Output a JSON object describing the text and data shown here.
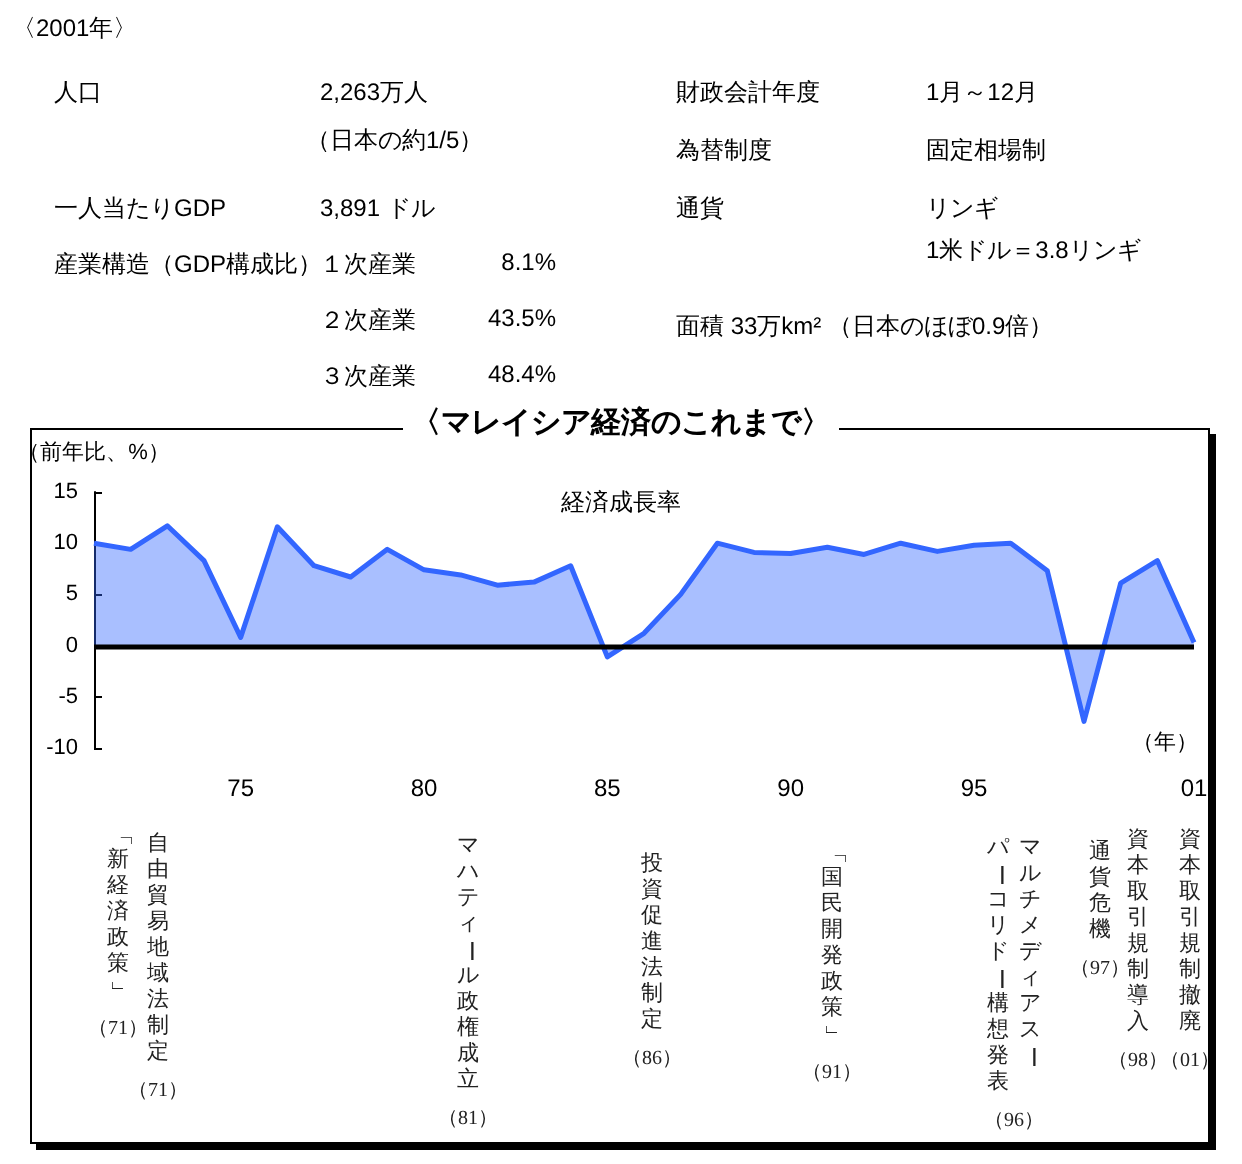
{
  "chart_data": [
    {
      "type": "other",
      "title": "〈2001年〉",
      "annotations": [
        "人口",
        "2,263万人",
        "（日本の約1/5）",
        "一人当たりGDP",
        "3,891 ドル",
        "産業構造（GDP構成比）",
        "１次産業",
        "8.1%",
        "２次産業",
        "43.5%",
        "３次産業",
        "48.4%",
        "財政会計年度",
        "1月～12月",
        "為替制度",
        "固定相場制",
        "通貨",
        "リンギ",
        "1米ドル＝3.8リンギ",
        "面積 33万km² （日本のほぼ0.9倍）"
      ]
    },
    {
      "type": "area",
      "title": "〈マレイシア経済のこれまで〉",
      "ylabel": "（前年比、%）",
      "xlabel": "（年）",
      "categories": [
        null,
        null,
        null,
        null,
        "75",
        null,
        null,
        null,
        null,
        "80",
        null,
        null,
        null,
        null,
        "85",
        null,
        null,
        null,
        null,
        "90",
        null,
        null,
        null,
        null,
        "95",
        null,
        null,
        null,
        null,
        null,
        "01"
      ],
      "series": [
        {
          "name": "経済成長率",
          "color": "#3366ff",
          "values": [
            10.0,
            9.4,
            11.7,
            8.3,
            0.8,
            11.6,
            7.8,
            6.7,
            9.4,
            7.4,
            6.9,
            5.9,
            6.2,
            7.8,
            -1.1,
            1.2,
            5.0,
            10.0,
            9.1,
            9.0,
            9.6,
            8.9,
            10.0,
            9.2,
            9.8,
            10.0,
            7.3,
            -7.4,
            6.1,
            8.3,
            0.3
          ]
        }
      ],
      "ref_lines": [
        {
          "axis": "y",
          "value": 0,
          "color": "#000000"
        }
      ],
      "ylim": [
        -10,
        15
      ],
      "yticks": [
        -10,
        -5,
        0,
        5,
        10,
        15
      ],
      "grid": false,
      "legend": false,
      "marker": "none",
      "annotations": [
        "「新経済政策」（71）",
        "自由貿易地域法制定（71）",
        "マハティール政権成立（81）",
        "投資促進法制定（86）",
        "「国民開発政策」（91）",
        "マルチメディアスーパーコリドー構想発表（96）",
        "通貨危機（97）",
        "資本取引規制導入（98）",
        "資本取引規制撤廃（01）"
      ]
    }
  ]
}
